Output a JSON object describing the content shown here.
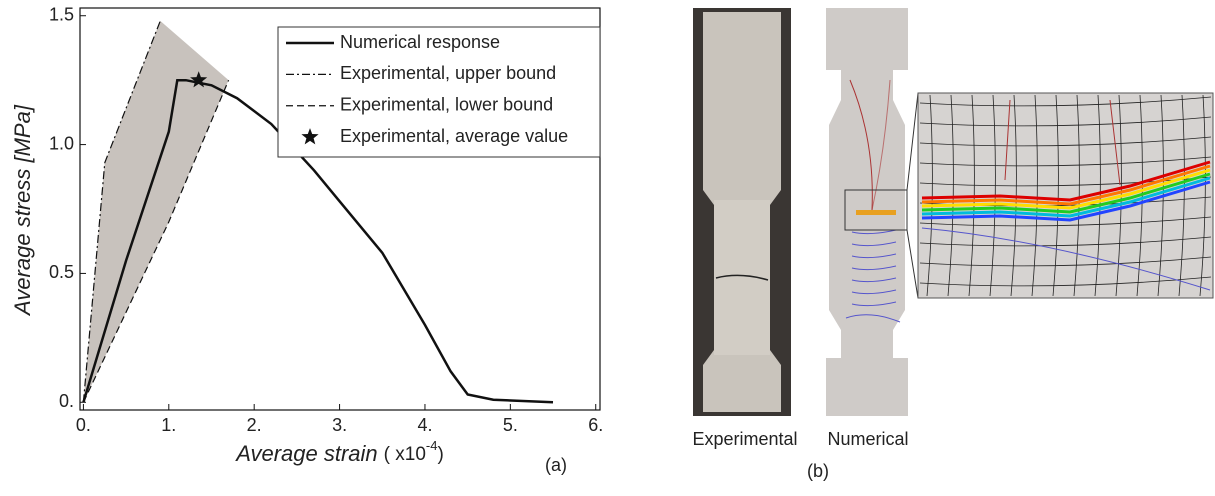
{
  "chart_data": {
    "type": "line",
    "x_label": [
      "Average strain",
      "( x10",
      "-4",
      ")"
    ],
    "y_label": "Average stress [MPa]",
    "xlim": [
      -0.04,
      6.05
    ],
    "ylim": [
      -0.03,
      1.53
    ],
    "xticks": [
      {
        "value": 0,
        "label": "0."
      },
      {
        "value": 1,
        "label": "1."
      },
      {
        "value": 2,
        "label": "2."
      },
      {
        "value": 3,
        "label": "3."
      },
      {
        "value": 4,
        "label": "4."
      },
      {
        "value": 5,
        "label": "5."
      },
      {
        "value": 6,
        "label": "6."
      }
    ],
    "yticks": [
      {
        "value": 0,
        "label": "0."
      },
      0.5,
      {
        "value": 1,
        "label": "1.0"
      },
      1.5
    ],
    "legend": "upper right",
    "series": [
      {
        "name": "Numerical response",
        "color": "#111111",
        "style": "solid",
        "x": [
          0,
          0.5,
          1.0,
          1.1,
          1.2,
          1.5,
          1.8,
          2.2,
          2.7,
          3.0,
          3.5,
          4.0,
          4.3,
          4.5,
          4.8,
          5.5
        ],
        "values": [
          0,
          0.55,
          1.05,
          1.25,
          1.25,
          1.23,
          1.18,
          1.08,
          0.9,
          0.78,
          0.58,
          0.3,
          0.12,
          0.03,
          0.01,
          0
        ]
      },
      {
        "name": "Experimental, upper bound",
        "color": "#111111",
        "style": "dashdot",
        "x": [
          0,
          0.25,
          0.9
        ],
        "values": [
          0,
          0.93,
          1.48
        ]
      },
      {
        "name": "Experimental, lower bound",
        "color": "#111111",
        "style": "dashed",
        "x": [
          0,
          1.0,
          1.7
        ],
        "values": [
          0,
          0.7,
          1.25
        ]
      },
      {
        "name": "Experimental, average value",
        "color": "#111111",
        "style": "star",
        "x": [
          1.35
        ],
        "values": [
          1.25
        ]
      }
    ]
  },
  "panel_a_label": "(a)",
  "panel_b": {
    "label": "(b)",
    "captions": [
      "Experimental",
      "Numerical"
    ]
  }
}
